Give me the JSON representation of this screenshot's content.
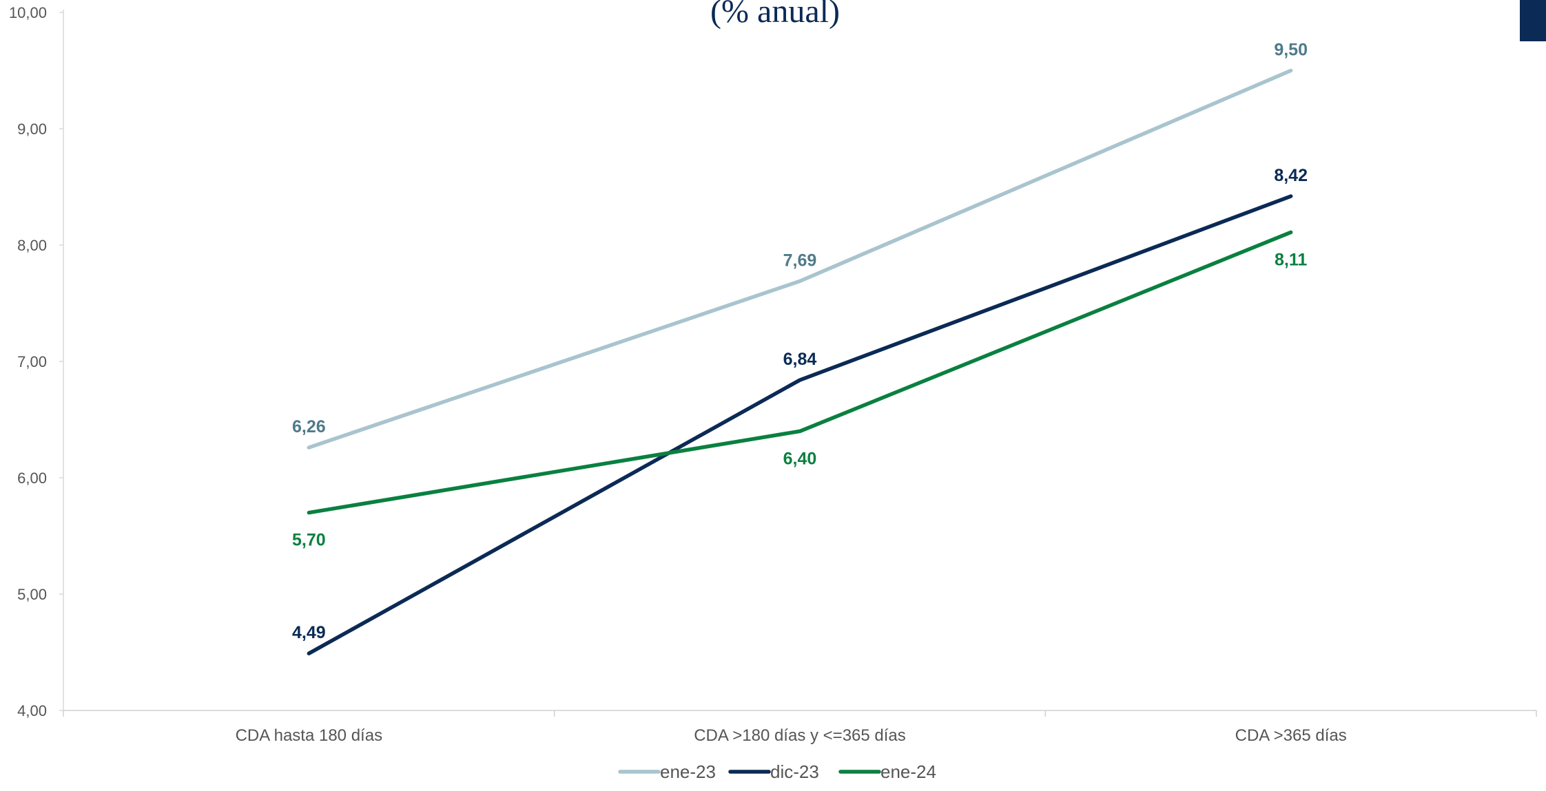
{
  "chart_data": {
    "type": "line",
    "title": "(% anual)",
    "categories": [
      "CDA hasta 180 días",
      "CDA >180 días y <=365 días",
      "CDA >365 días"
    ],
    "ylim": [
      4,
      10
    ],
    "yticks": [
      "4,00",
      "5,00",
      "6,00",
      "7,00",
      "8,00",
      "9,00",
      "10,00"
    ],
    "grid": false,
    "legend_position": "bottom",
    "series": [
      {
        "name": "ene-23",
        "values": [
          6.26,
          7.69,
          9.5
        ],
        "labels": [
          "6,26",
          "7,69",
          "9,50"
        ],
        "color": "#a9c4cf",
        "label_color": "#4f7a8a",
        "label_placement": [
          "above",
          "above",
          "above"
        ]
      },
      {
        "name": "dic-23",
        "values": [
          4.49,
          6.84,
          8.42
        ],
        "labels": [
          "4,49",
          "6,84",
          "8,42"
        ],
        "color": "#0b2a55",
        "label_color": "#0b2a55",
        "label_placement": [
          "above",
          "above",
          "above"
        ]
      },
      {
        "name": "ene-24",
        "values": [
          5.7,
          6.4,
          8.11
        ],
        "labels": [
          "5,70",
          "6,40",
          "8,11"
        ],
        "color": "#0a8040",
        "label_color": "#0a8040",
        "label_placement": [
          "below",
          "below",
          "below"
        ]
      }
    ]
  }
}
